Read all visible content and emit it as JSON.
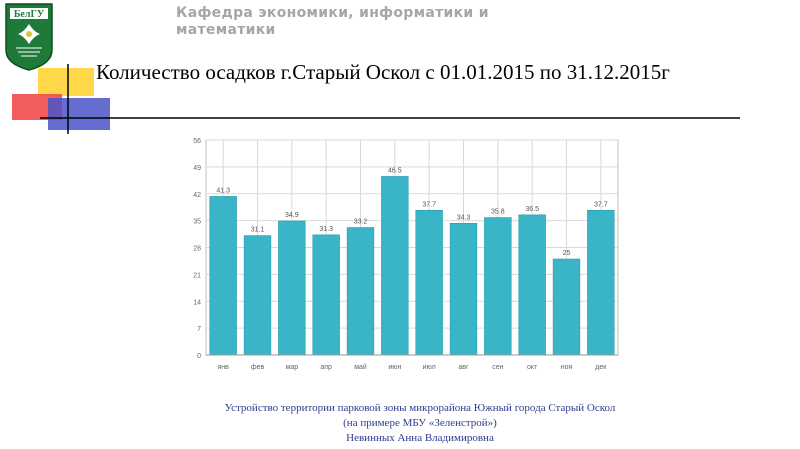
{
  "logo": {
    "text": "БелГУ"
  },
  "header": {
    "department": "Кафедра экономики, информатики и математики",
    "title": "Количество осадков г.Старый Оскол с 01.01.2015 по 31.12.2015г"
  },
  "footer": {
    "line1": "Устройство территории парковой зоны микрорайона Южный города Старый Оскол",
    "line2": "(на примере МБУ «Зеленстрой»)",
    "line3": "Невинных Анна Владимировна"
  },
  "colors": {
    "bar": "#3ab5c8",
    "bar_edge": "#2a9bb0",
    "grid": "#d9d9d9",
    "footer_text": "#2f3d8c",
    "logo_green": "#1f7a3a"
  },
  "chart_data": {
    "type": "bar",
    "title": "",
    "xlabel": "",
    "ylabel": "",
    "categories": [
      "янв",
      "фев",
      "мар",
      "апр",
      "май",
      "июн",
      "июл",
      "авг",
      "сен",
      "окт",
      "ноя",
      "дек"
    ],
    "values": [
      41.3,
      31.1,
      34.9,
      31.3,
      33.2,
      46.5,
      37.7,
      34.3,
      35.8,
      36.5,
      25,
      37.7
    ],
    "value_labels": [
      "41.3",
      "31.1",
      "34.9",
      "31.3",
      "33.2",
      "46.5",
      "37.7",
      "34.3",
      "35.8",
      "36.5",
      "25",
      "37.7"
    ],
    "ylim": [
      0,
      56
    ],
    "yticks": [
      0,
      7,
      14,
      21,
      28,
      35,
      42,
      49,
      56
    ],
    "grid": true
  }
}
